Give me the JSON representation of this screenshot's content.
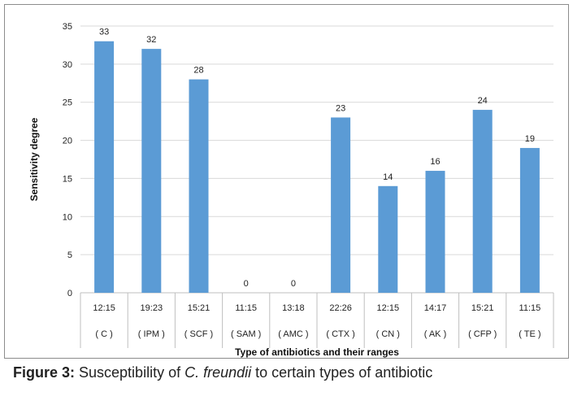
{
  "chart_data": {
    "type": "bar",
    "categories": [
      {
        "range": "12:15",
        "code": "( C )"
      },
      {
        "range": "19:23",
        "code": "( IPM )"
      },
      {
        "range": "15:21",
        "code": "( SCF )"
      },
      {
        "range": "11:15",
        "code": "( SAM )"
      },
      {
        "range": "13:18",
        "code": "( AMC )"
      },
      {
        "range": "22:26",
        "code": "( CTX )"
      },
      {
        "range": "12:15",
        "code": "( CN )"
      },
      {
        "range": "14:17",
        "code": "( AK )"
      },
      {
        "range": "15:21",
        "code": "( CFP )"
      },
      {
        "range": "11:15",
        "code": "( TE )"
      }
    ],
    "values": [
      33,
      32,
      28,
      0,
      0,
      23,
      14,
      16,
      24,
      19
    ],
    "data_labels": [
      "33",
      "32",
      "28",
      "0",
      "0",
      "23",
      "14",
      "16",
      "24",
      "19"
    ],
    "ylim": [
      0,
      35
    ],
    "yticks": [
      "0",
      "5",
      "10",
      "15",
      "20",
      "25",
      "30",
      "35"
    ],
    "ylabel": "Sensitivity degree",
    "xlabel": "Type of antibiotics and their ranges",
    "grid": true,
    "bar_color": "#5b9bd5"
  },
  "caption": {
    "label": "Figure 3:",
    "text_before": " Susceptibility of ",
    "organism": "C. freundii",
    "text_after": " to certain types of antibiotic"
  }
}
